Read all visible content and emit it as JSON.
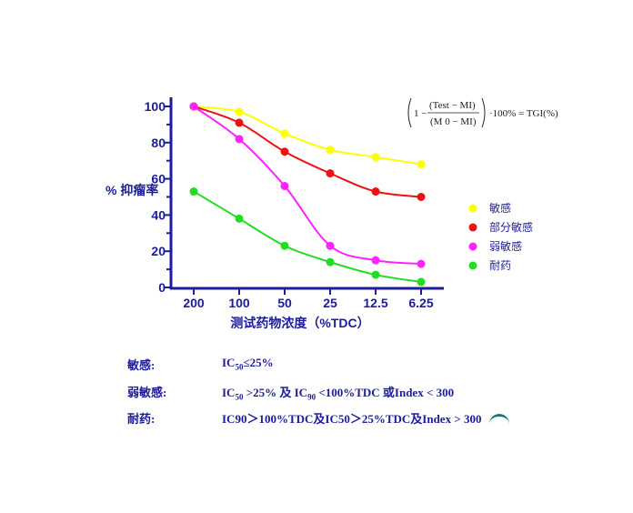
{
  "colors": {
    "axis": "#1c1c9c",
    "text": "#1c1c9c",
    "sensitive": "#ffff00",
    "partial": "#ee1111",
    "weak": "#ff22ff",
    "resistant": "#22dd22"
  },
  "formula": {
    "left": "1 −",
    "numerator": "(Test − MI)",
    "denominator": "(M 0 − MI)",
    "right": "·100% = TGI(%)"
  },
  "chart_data": {
    "type": "line",
    "ylabel": "% 抑瘤率",
    "xlabel": "测试药物浓度（%TDC）",
    "categories": [
      "200",
      "100",
      "50",
      "25",
      "12.5",
      "6.25"
    ],
    "ylim": [
      0,
      100
    ],
    "yticks": [
      "0",
      "20",
      "40",
      "60",
      "80",
      "100"
    ],
    "legend_position": "right",
    "grid": false,
    "series": [
      {
        "name": "敏感",
        "color_key": "sensitive",
        "values": [
          100,
          97,
          85,
          76,
          72,
          68
        ]
      },
      {
        "name": "部分敏感",
        "color_key": "partial",
        "values": [
          100,
          91,
          75,
          63,
          53,
          50
        ]
      },
      {
        "name": "弱敏感",
        "color_key": "weak",
        "values": [
          100,
          82,
          56,
          23,
          15,
          13
        ]
      },
      {
        "name": "耐药",
        "color_key": "resistant",
        "values": [
          53,
          38,
          23,
          14,
          7,
          3
        ]
      }
    ]
  },
  "criteria": [
    {
      "label": "敏感:",
      "text_html": "IC<sub>50</sub>≤25%"
    },
    {
      "label": "弱敏感:",
      "text_html": "IC<sub>50</sub> >25% 及 IC<sub>90</sub> <100%TDC 或Index < 300"
    },
    {
      "label": "耐药:",
      "text_html": "IC90＞100%TDC及IC50＞25%TDC及Index > 300"
    }
  ]
}
